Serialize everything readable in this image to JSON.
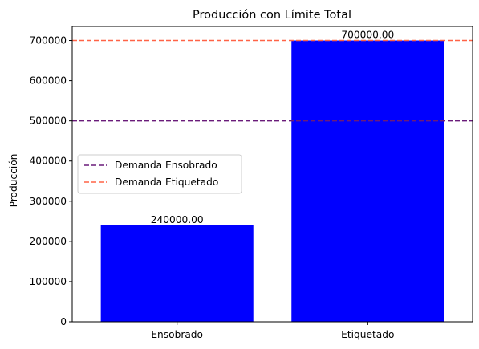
{
  "chart_data": {
    "type": "bar",
    "title": "Producción con Límite Total",
    "xlabel": "",
    "ylabel": "Producción",
    "categories": [
      "Ensobrado",
      "Etiquetado"
    ],
    "values": [
      240000,
      700000
    ],
    "value_labels": [
      "240000.00",
      "700000.00"
    ],
    "bar_color": "#0000ff",
    "ylim": [
      0,
      735000
    ],
    "yticks": [
      0,
      100000,
      200000,
      300000,
      400000,
      500000,
      600000,
      700000
    ],
    "ytick_labels": [
      "0",
      "100000",
      "200000",
      "300000",
      "400000",
      "500000",
      "600000",
      "700000"
    ],
    "grid": false,
    "reference_lines": [
      {
        "name": "Demanda Ensobrado",
        "value": 500000,
        "color": "#6a1b7a",
        "style": "dashed"
      },
      {
        "name": "Demanda Etiquetado",
        "value": 700000,
        "color": "#ff6347",
        "style": "dashed"
      }
    ],
    "legend_position": "center-left"
  }
}
